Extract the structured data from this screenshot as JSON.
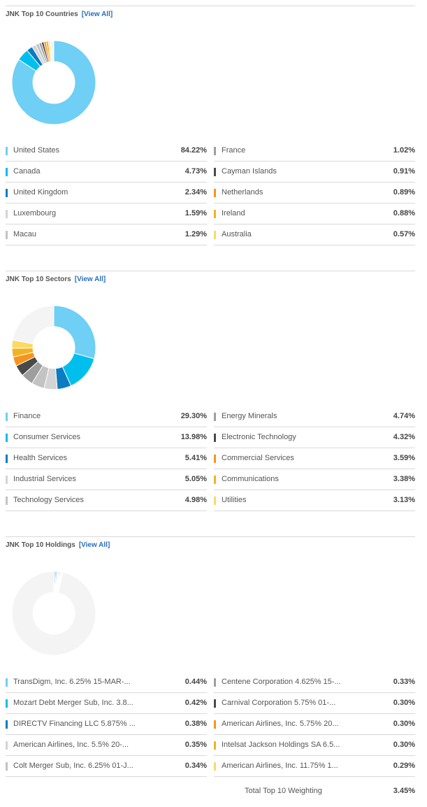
{
  "countries": {
    "title": "JNK Top 10 Countries",
    "view_all": "[View All]",
    "items": [
      {
        "name": "United States",
        "value": "84.22%",
        "pct": 84.22,
        "color": "#6fcff5"
      },
      {
        "name": "Canada",
        "value": "4.73%",
        "pct": 4.73,
        "color": "#00bfed"
      },
      {
        "name": "United Kingdom",
        "value": "2.34%",
        "pct": 2.34,
        "color": "#0a7cc2"
      },
      {
        "name": "Luxembourg",
        "value": "1.59%",
        "pct": 1.59,
        "color": "#d4d4d4"
      },
      {
        "name": "Macau",
        "value": "1.29%",
        "pct": 1.29,
        "color": "#c3c3c3"
      },
      {
        "name": "France",
        "value": "1.02%",
        "pct": 1.02,
        "color": "#9e9e9e"
      },
      {
        "name": "Cayman Islands",
        "value": "0.91%",
        "pct": 0.91,
        "color": "#4a4a4a"
      },
      {
        "name": "Netherlands",
        "value": "0.89%",
        "pct": 0.89,
        "color": "#f7941d"
      },
      {
        "name": "Ireland",
        "value": "0.88%",
        "pct": 0.88,
        "color": "#f3b320"
      },
      {
        "name": "Australia",
        "value": "0.57%",
        "pct": 0.57,
        "color": "#fcd964"
      }
    ]
  },
  "sectors": {
    "title": "JNK Top 10 Sectors",
    "view_all": "[View All]",
    "items": [
      {
        "name": "Finance",
        "value": "29.30%",
        "pct": 29.3,
        "color": "#6fcff5"
      },
      {
        "name": "Consumer Services",
        "value": "13.98%",
        "pct": 13.98,
        "color": "#00bfed"
      },
      {
        "name": "Health Services",
        "value": "5.41%",
        "pct": 5.41,
        "color": "#0a7cc2"
      },
      {
        "name": "Industrial Services",
        "value": "5.05%",
        "pct": 5.05,
        "color": "#d4d4d4"
      },
      {
        "name": "Technology Services",
        "value": "4.98%",
        "pct": 4.98,
        "color": "#c3c3c3"
      },
      {
        "name": "Energy Minerals",
        "value": "4.74%",
        "pct": 4.74,
        "color": "#9e9e9e"
      },
      {
        "name": "Electronic Technology",
        "value": "4.32%",
        "pct": 4.32,
        "color": "#4a4a4a"
      },
      {
        "name": "Commercial Services",
        "value": "3.59%",
        "pct": 3.59,
        "color": "#f7941d"
      },
      {
        "name": "Communications",
        "value": "3.38%",
        "pct": 3.38,
        "color": "#f3b320"
      },
      {
        "name": "Utilities",
        "value": "3.13%",
        "pct": 3.13,
        "color": "#fcd964"
      }
    ]
  },
  "holdings": {
    "title": "JNK Top 10 Holdings",
    "view_all": "[View All]",
    "items": [
      {
        "name": "TransDigm, Inc. 6.25% 15-MAR-...",
        "value": "0.44%",
        "pct": 0.44,
        "color": "#6fcff5"
      },
      {
        "name": "Mozart Debt Merger Sub, Inc. 3.8...",
        "value": "0.42%",
        "pct": 0.42,
        "color": "#00bfed"
      },
      {
        "name": "DIRECTV Financing LLC 5.875% ...",
        "value": "0.38%",
        "pct": 0.38,
        "color": "#0a7cc2"
      },
      {
        "name": "American Airlines, Inc. 5.5% 20-...",
        "value": "0.35%",
        "pct": 0.35,
        "color": "#d4d4d4"
      },
      {
        "name": "Colt Merger Sub, Inc. 6.25% 01-J...",
        "value": "0.34%",
        "pct": 0.34,
        "color": "#c3c3c3"
      },
      {
        "name": "Centene Corporation 4.625% 15-...",
        "value": "0.33%",
        "pct": 0.33,
        "color": "#9e9e9e"
      },
      {
        "name": "Carnival Corporation 5.75% 01-...",
        "value": "0.30%",
        "pct": 0.3,
        "color": "#4a4a4a"
      },
      {
        "name": "American Airlines, Inc. 5.75% 20...",
        "value": "0.30%",
        "pct": 0.3,
        "color": "#f7941d"
      },
      {
        "name": "Intelsat Jackson Holdings SA 6.5...",
        "value": "0.30%",
        "pct": 0.3,
        "color": "#f3b320"
      },
      {
        "name": "American Airlines, Inc. 11.75% 1...",
        "value": "0.29%",
        "pct": 0.29,
        "color": "#fcd964"
      }
    ],
    "total_label": "Total Top 10 Weighting",
    "total_value": "3.45%"
  },
  "chart_data": [
    {
      "type": "pie",
      "categories": [
        "United States",
        "Canada",
        "United Kingdom",
        "Luxembourg",
        "Macau",
        "France",
        "Cayman Islands",
        "Netherlands",
        "Ireland",
        "Australia"
      ],
      "values": [
        84.22,
        4.73,
        2.34,
        1.59,
        1.29,
        1.02,
        0.91,
        0.89,
        0.88,
        0.57
      ],
      "title": "JNK Top 10 Countries"
    },
    {
      "type": "pie",
      "categories": [
        "Finance",
        "Consumer Services",
        "Health Services",
        "Industrial Services",
        "Technology Services",
        "Energy Minerals",
        "Electronic Technology",
        "Commercial Services",
        "Communications",
        "Utilities"
      ],
      "values": [
        29.3,
        13.98,
        5.41,
        5.05,
        4.98,
        4.74,
        4.32,
        3.59,
        3.38,
        3.13
      ],
      "title": "JNK Top 10 Sectors"
    },
    {
      "type": "pie",
      "categories": [
        "TransDigm, Inc. 6.25% 15-MAR-...",
        "Mozart Debt Merger Sub, Inc. 3.8...",
        "DIRECTV Financing LLC 5.875% ...",
        "American Airlines, Inc. 5.5% 20-...",
        "Colt Merger Sub, Inc. 6.25% 01-J...",
        "Centene Corporation 4.625% 15-...",
        "Carnival Corporation 5.75% 01-...",
        "American Airlines, Inc. 5.75% 20...",
        "Intelsat Jackson Holdings SA 6.5...",
        "American Airlines, Inc. 11.75% 1..."
      ],
      "values": [
        0.44,
        0.42,
        0.38,
        0.35,
        0.34,
        0.33,
        0.3,
        0.3,
        0.3,
        0.29
      ],
      "title": "JNK Top 10 Holdings"
    }
  ]
}
